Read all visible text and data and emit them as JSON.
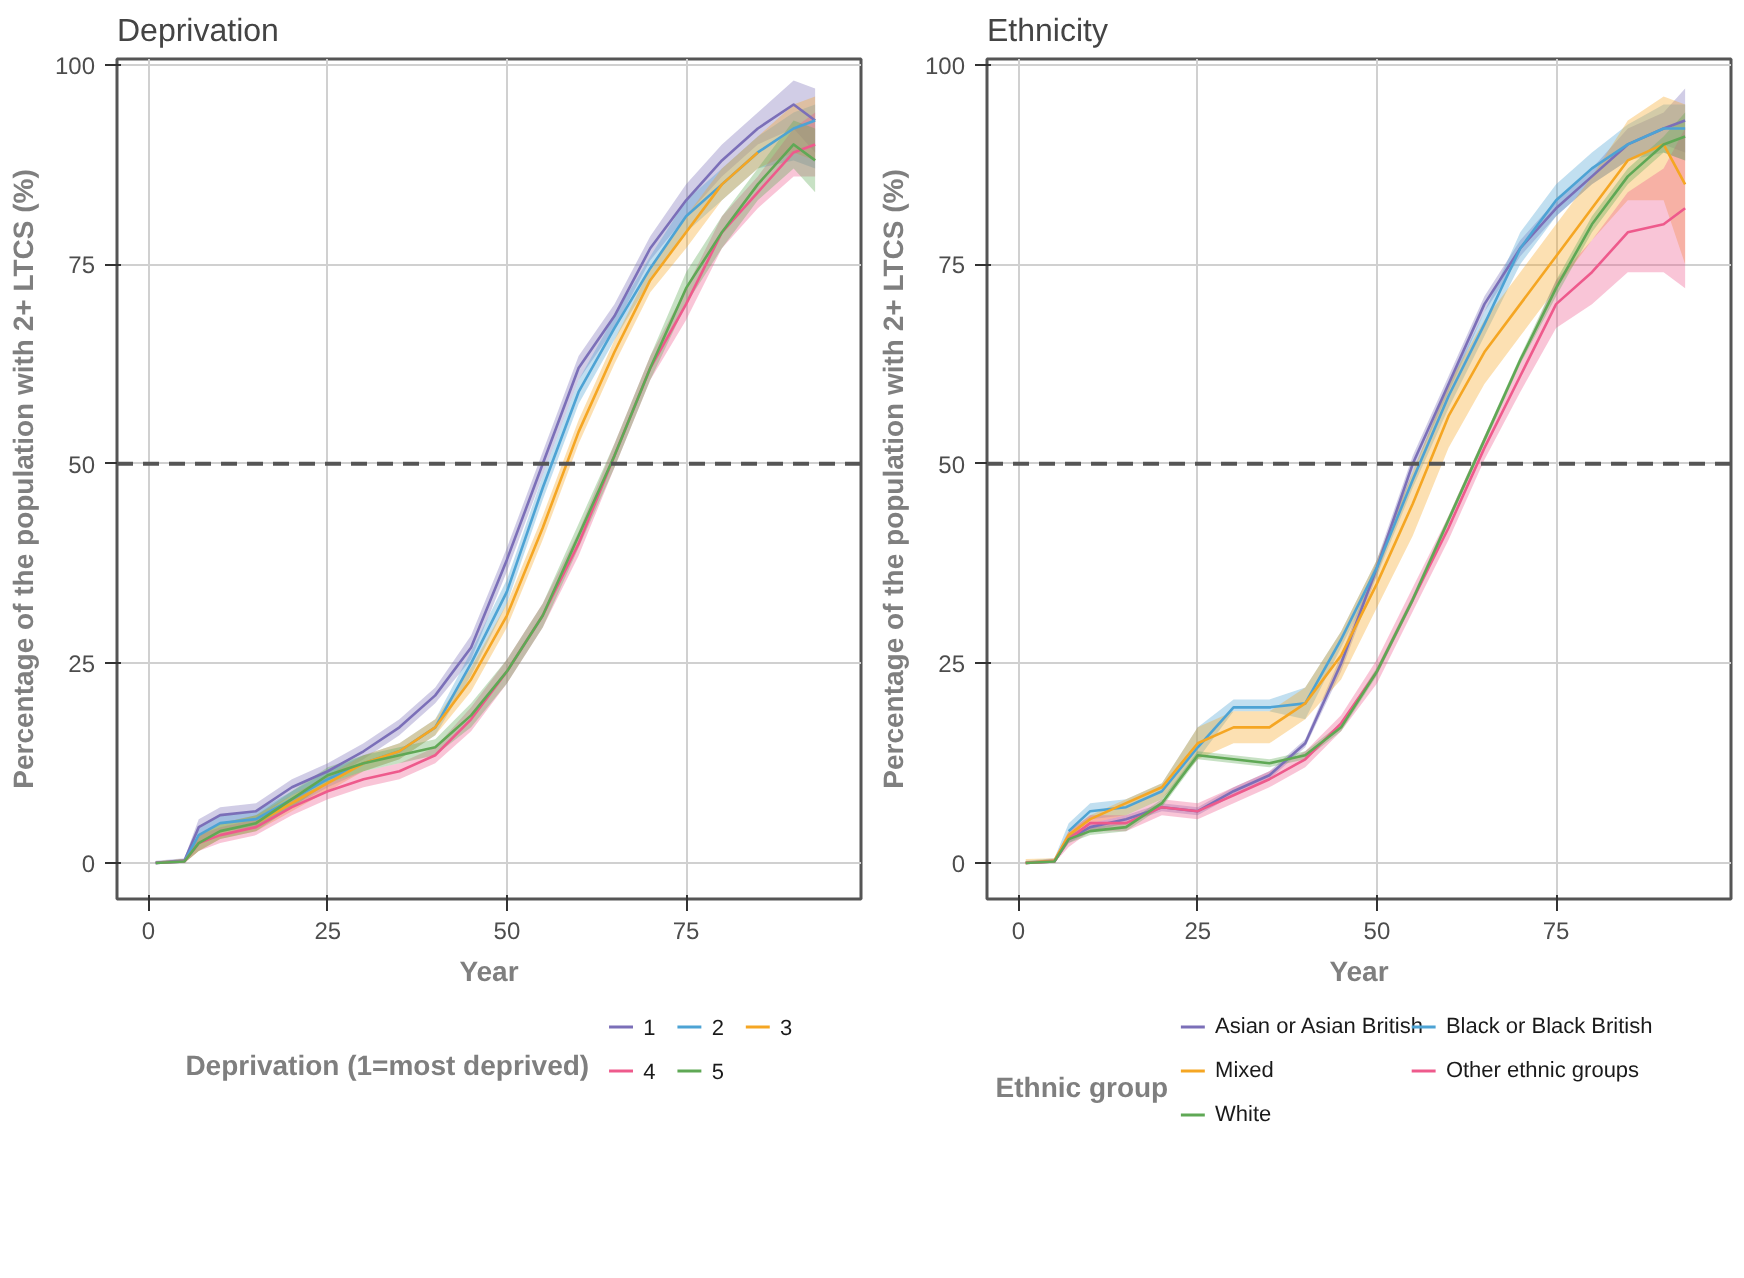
{
  "chart_data": [
    {
      "type": "line",
      "title": "Deprivation",
      "xlabel": "Year",
      "ylabel": "Percentage of the population with 2+ LTCS (%)",
      "legend_title": "Deprivation (1=most deprived)",
      "legend": "bottom",
      "grid": true,
      "x": [
        1,
        5,
        7,
        10,
        15,
        20,
        25,
        30,
        35,
        40,
        45,
        50,
        55,
        60,
        65,
        70,
        75,
        80,
        85,
        90,
        93
      ],
      "xlim": [
        -4.4,
        99.4
      ],
      "ylim": [
        -4.5,
        100.7
      ],
      "xticks": [
        0,
        25,
        50,
        75
      ],
      "yticks": [
        0,
        25,
        50,
        75,
        100
      ],
      "ref_lines": [
        {
          "axis": "y",
          "value": 50,
          "line_style": "dashed",
          "color": "#555555"
        }
      ],
      "series": [
        {
          "name": "1",
          "color": "#7b6fb8",
          "values": [
            0,
            0.3,
            4.5,
            6,
            6.5,
            9.5,
            11.5,
            14,
            17,
            21,
            27,
            38,
            50,
            62,
            68.5,
            77,
            83,
            88,
            92,
            95,
            93
          ],
          "lower": [
            0,
            0,
            3.5,
            5,
            5.5,
            8.5,
            10.5,
            13,
            16,
            20,
            25.5,
            36.5,
            48.5,
            60.5,
            67,
            75.5,
            81,
            86,
            90,
            92,
            89
          ],
          "upper": [
            0.3,
            0.6,
            5.5,
            7,
            7.5,
            10.5,
            12.5,
            15,
            18,
            22,
            28.5,
            39.5,
            51.5,
            63.5,
            70,
            78.5,
            85,
            90,
            94,
            98,
            97
          ]
        },
        {
          "name": "2",
          "color": "#4da3d4",
          "values": [
            0,
            0.2,
            3.5,
            5,
            5.5,
            8,
            10.5,
            12.5,
            14,
            17,
            25,
            34,
            47,
            59,
            67,
            74.5,
            81,
            85,
            89,
            92,
            93
          ],
          "lower": [
            0,
            0,
            2.5,
            4,
            4.5,
            7,
            9.5,
            11.5,
            13,
            16,
            23.5,
            32.5,
            45.5,
            57.5,
            65.5,
            73,
            79,
            83,
            87,
            88,
            87
          ],
          "upper": [
            0.2,
            0.5,
            4.5,
            6,
            6.5,
            9,
            11.5,
            13.5,
            15,
            18,
            26.5,
            35.5,
            48.5,
            60.5,
            68.5,
            76,
            83,
            87,
            91,
            94,
            95
          ]
        },
        {
          "name": "3",
          "color": "#f5a623",
          "values": [
            null,
            null,
            null,
            null,
            5,
            7.5,
            10,
            12.5,
            14,
            17,
            23,
            31,
            42,
            54,
            64,
            73,
            79,
            85,
            89,
            null,
            null
          ],
          "lower": [
            0,
            0,
            1.5,
            3,
            4,
            6.5,
            9,
            11.5,
            13,
            16,
            21.5,
            29.5,
            40.5,
            52.5,
            62.5,
            71.5,
            77,
            83,
            87,
            89,
            88
          ],
          "upper": [
            0.2,
            0.5,
            3.5,
            5,
            6,
            8.5,
            11,
            13.5,
            15,
            18,
            24.5,
            32.5,
            43.5,
            55.5,
            65.5,
            74.5,
            81,
            87,
            91,
            95,
            96
          ]
        },
        {
          "name": "4",
          "color": "#ee5a8c",
          "values": [
            0,
            0.2,
            2.5,
            3.5,
            4.5,
            7,
            9,
            10.5,
            11.5,
            13.5,
            18,
            24,
            31,
            40,
            51,
            62,
            70,
            79,
            84,
            89,
            90
          ],
          "lower": [
            0,
            0,
            1.5,
            2.5,
            3.5,
            6,
            8,
            9.5,
            10.5,
            12.5,
            16.5,
            22.5,
            29.5,
            38.5,
            49.5,
            60.5,
            68,
            77,
            82,
            86,
            86
          ],
          "upper": [
            0.2,
            0.5,
            3.5,
            4.5,
            5.5,
            8,
            10,
            11.5,
            12.5,
            14.5,
            19.5,
            25.5,
            32.5,
            41.5,
            52.5,
            63.5,
            72,
            81,
            86,
            92,
            94
          ]
        },
        {
          "name": "5",
          "color": "#5fa855",
          "values": [
            0,
            0.2,
            2.5,
            4,
            5,
            8,
            11,
            12.5,
            13.5,
            14.5,
            18.5,
            24,
            31,
            41,
            51,
            62,
            72,
            79,
            85,
            90,
            88
          ],
          "lower": [
            0,
            0,
            1.5,
            3,
            4,
            7,
            10,
            11.5,
            12.5,
            13.5,
            17,
            22.5,
            29.5,
            39.5,
            49.5,
            60.5,
            70,
            77,
            83,
            87,
            84
          ],
          "upper": [
            0.2,
            0.5,
            3.5,
            5,
            6,
            9,
            12,
            13.5,
            14.5,
            15.5,
            20,
            25.5,
            32.5,
            42.5,
            52.5,
            63.5,
            74,
            81,
            87,
            93,
            92
          ]
        }
      ]
    },
    {
      "type": "line",
      "title": "Ethnicity",
      "xlabel": "Year",
      "ylabel": "Percentage of the population with 2+ LTCS (%)",
      "legend_title": "Ethnic group",
      "legend": "bottom",
      "grid": true,
      "x": [
        1,
        5,
        7,
        10,
        15,
        20,
        25,
        30,
        35,
        40,
        45,
        50,
        55,
        60,
        65,
        70,
        75,
        80,
        85,
        90,
        93
      ],
      "xlim": [
        -4.4,
        99.4
      ],
      "ylim": [
        -4.5,
        100.7
      ],
      "xticks": [
        0,
        25,
        50,
        75
      ],
      "yticks": [
        0,
        25,
        50,
        75,
        100
      ],
      "ref_lines": [
        {
          "axis": "y",
          "value": 50,
          "line_style": "dashed",
          "color": "#555555"
        }
      ],
      "series": [
        {
          "name": "Asian or Asian British",
          "color": "#7b6fb8",
          "values": [
            0,
            0.2,
            3,
            4.5,
            5.5,
            7,
            6.5,
            9,
            11,
            15,
            25,
            37,
            50,
            60,
            70,
            77,
            82,
            86,
            90,
            92,
            93
          ],
          "lower": [
            0,
            0,
            2.5,
            4,
            5,
            6.5,
            6,
            8.5,
            10.5,
            14.5,
            24,
            36,
            49,
            59,
            69,
            76,
            81,
            85,
            88,
            90,
            89
          ],
          "upper": [
            0.2,
            0.5,
            3.5,
            5,
            6,
            7.5,
            7,
            9.5,
            11.5,
            15.5,
            26,
            38,
            51,
            61,
            71,
            78,
            83,
            87,
            92,
            94,
            97
          ]
        },
        {
          "name": "Black or Black British",
          "color": "#4da3d4",
          "values": [
            null,
            null,
            4,
            6.5,
            7,
            9,
            14.5,
            19.5,
            19.5,
            20,
            28,
            37,
            48,
            58.5,
            67.5,
            77,
            83,
            87,
            90,
            92,
            92
          ],
          "lower": [
            0,
            0,
            3,
            5.5,
            6,
            8,
            13,
            19,
            19,
            18,
            27,
            36,
            47,
            57,
            66,
            75,
            81,
            85,
            88,
            89,
            88
          ],
          "upper": [
            0.3,
            0.6,
            5,
            7.5,
            8,
            10,
            17,
            20.5,
            20.5,
            22,
            29,
            38,
            49,
            60,
            69,
            79,
            85,
            89,
            92.5,
            95,
            95
          ]
        },
        {
          "name": "Mixed",
          "color": "#f5a623",
          "values": [
            0,
            0.3,
            3.5,
            5.5,
            7.5,
            9.5,
            15,
            17,
            17,
            20,
            26,
            35,
            45,
            56,
            64,
            70,
            76,
            82,
            88,
            90,
            85
          ],
          "lower": [
            0,
            0,
            3,
            5,
            6,
            8,
            13,
            15,
            15,
            18,
            23,
            32,
            41,
            52,
            60,
            66,
            72,
            78,
            83,
            83,
            75
          ],
          "upper": [
            0.5,
            0.6,
            4,
            6,
            8,
            10,
            17,
            19,
            19,
            22,
            29,
            38,
            49,
            60,
            68,
            74,
            80,
            86,
            93,
            96,
            95
          ]
        },
        {
          "name": "Other ethnic groups",
          "color": "#ee5a8c",
          "values": [
            0,
            0.2,
            3,
            5,
            5,
            7,
            6.5,
            8.5,
            10.5,
            13,
            17.5,
            24,
            33,
            42,
            52,
            61,
            70,
            74,
            79,
            80,
            82
          ],
          "lower": [
            0,
            0,
            2,
            4,
            4,
            6,
            5.5,
            7.5,
            9.5,
            12,
            16.5,
            22.5,
            31.5,
            40.5,
            50.5,
            59,
            67,
            70,
            74,
            74,
            72
          ],
          "upper": [
            0.2,
            0.5,
            4,
            6,
            6,
            8,
            7.5,
            9.5,
            11.5,
            14,
            18.5,
            25.5,
            34.5,
            43.5,
            53.5,
            63,
            73,
            78,
            84,
            87,
            92
          ]
        },
        {
          "name": "White",
          "color": "#5fa855",
          "values": [
            0,
            0.2,
            3,
            4,
            4.5,
            7.5,
            13.5,
            13,
            12.5,
            13.5,
            17,
            24,
            33,
            43,
            53,
            63,
            72,
            80,
            86,
            90,
            91
          ],
          "lower": [
            0,
            0,
            2.5,
            3.5,
            4,
            7,
            13,
            12.5,
            12,
            13,
            16.5,
            23.5,
            32.5,
            42.5,
            52.5,
            62.5,
            71,
            79,
            85,
            89,
            88
          ],
          "upper": [
            0.2,
            0.4,
            3.5,
            4.5,
            5,
            8,
            14,
            13.5,
            13,
            14,
            17.5,
            24.5,
            33.5,
            43.5,
            53.5,
            63.5,
            73,
            81,
            87,
            91,
            94
          ]
        }
      ]
    }
  ]
}
